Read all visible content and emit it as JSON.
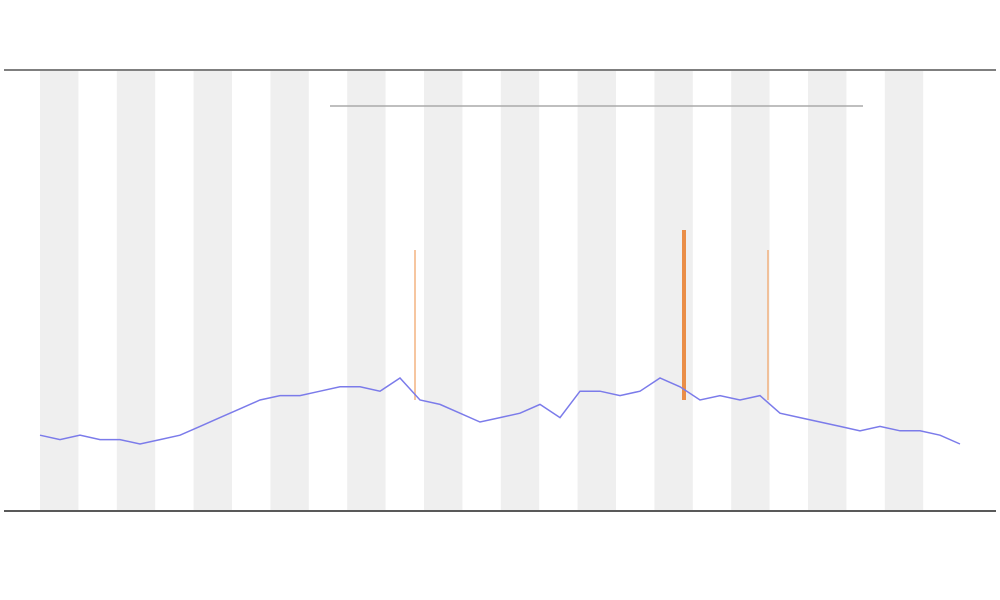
{
  "chart_data": {
    "type": "line",
    "x": [
      0,
      1,
      2,
      3,
      4,
      5,
      6,
      7,
      8,
      9,
      10,
      11,
      12,
      13,
      14,
      15,
      16,
      17,
      18,
      19,
      20,
      21,
      22,
      23,
      24,
      25,
      26,
      27,
      28,
      29,
      30,
      31,
      32,
      33,
      34,
      35,
      36,
      37,
      38,
      39,
      40,
      41,
      42,
      43,
      44,
      45,
      46
    ],
    "series": [
      {
        "color": "#7b7bea",
        "values": [
          17,
          16,
          17,
          16,
          16,
          15,
          16,
          17,
          19,
          21,
          23,
          25,
          26,
          26,
          27,
          28,
          28,
          27,
          30,
          25,
          24,
          22,
          20,
          21,
          22,
          24,
          21,
          27,
          27,
          26,
          27,
          30,
          28,
          25,
          26,
          25,
          26,
          22,
          21,
          20,
          19,
          18,
          19,
          18,
          18,
          17,
          15
        ]
      }
    ],
    "xlim": [
      0,
      46
    ],
    "ylim": [
      0,
      100
    ]
  }
}
